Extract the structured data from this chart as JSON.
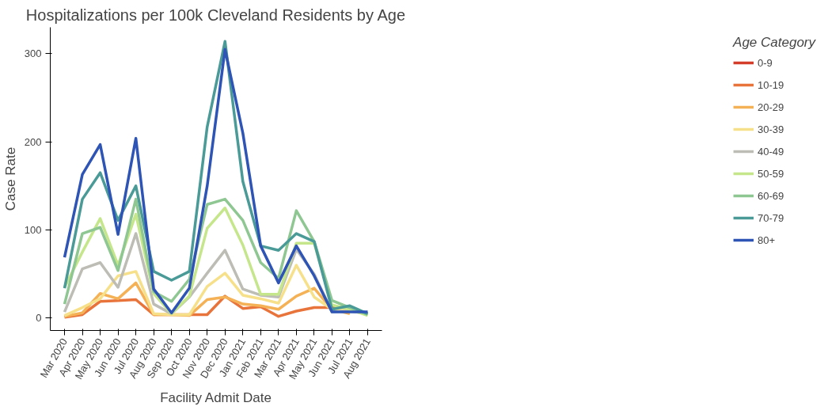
{
  "chart_data": {
    "type": "line",
    "title": "Hospitalizations per 100k Cleveland Residents by Age",
    "xlabel": "Facility Admit Date",
    "ylabel": "Case Rate",
    "legend_title": "Age Category",
    "legend": "right",
    "categories": [
      "Mar 2020",
      "Apr 2020",
      "May 2020",
      "Jun 2020",
      "Jul 2020",
      "Aug 2020",
      "Sep 2020",
      "Oct 2020",
      "Nov 2020",
      "Dec 2020",
      "Jan 2021",
      "Feb 2021",
      "Mar 2021",
      "Apr 2021",
      "May 2021",
      "Jun 2021",
      "Jul 2021",
      "Aug 2021"
    ],
    "ylim": [
      -14,
      330
    ],
    "yticks": [
      0,
      100,
      200,
      300
    ],
    "grid": false,
    "line_style": "solid",
    "series": [
      {
        "name": "0-9",
        "color": "#d43d2a",
        "values": [
          null,
          null,
          null,
          null,
          null,
          null,
          null,
          null,
          null,
          null,
          null,
          null,
          null,
          null,
          null,
          null,
          null,
          null
        ]
      },
      {
        "name": "10-19",
        "color": "#e8743b",
        "values": [
          1,
          4,
          19,
          20,
          21,
          4,
          4,
          4,
          4,
          25,
          11,
          13,
          2,
          8,
          12,
          12,
          12,
          null
        ]
      },
      {
        "name": "20-29",
        "color": "#f5b155",
        "values": [
          2,
          6,
          28,
          22,
          40,
          4,
          4,
          3,
          21,
          24,
          16,
          14,
          10,
          25,
          34,
          10,
          5,
          null
        ]
      },
      {
        "name": "30-39",
        "color": "#f7e08a",
        "values": [
          3,
          12,
          22,
          48,
          53,
          5,
          4,
          4,
          36,
          51,
          26,
          22,
          17,
          60,
          24,
          10,
          8,
          6
        ]
      },
      {
        "name": "40-49",
        "color": "#bdbdb5",
        "values": [
          7,
          56,
          63,
          35,
          96,
          16,
          5,
          24,
          51,
          77,
          33,
          26,
          24,
          78,
          50,
          7,
          8,
          5
        ]
      },
      {
        "name": "50-59",
        "color": "#c5e68a",
        "values": [
          35,
          75,
          113,
          60,
          118,
          28,
          5,
          25,
          102,
          125,
          83,
          27,
          27,
          85,
          85,
          15,
          10,
          3
        ]
      },
      {
        "name": "60-69",
        "color": "#8fc793",
        "values": [
          16,
          96,
          103,
          54,
          135,
          30,
          19,
          44,
          129,
          135,
          111,
          63,
          45,
          122,
          87,
          20,
          12,
          4
        ]
      },
      {
        "name": "70-79",
        "color": "#4a9b98",
        "values": [
          34,
          135,
          165,
          111,
          150,
          53,
          43,
          53,
          217,
          314,
          155,
          82,
          77,
          96,
          87,
          10,
          14,
          5
        ]
      },
      {
        "name": "80+",
        "color": "#2e55b5",
        "values": [
          69,
          163,
          197,
          95,
          204,
          33,
          6,
          34,
          150,
          305,
          210,
          82,
          40,
          82,
          48,
          7,
          7,
          7
        ]
      }
    ]
  }
}
